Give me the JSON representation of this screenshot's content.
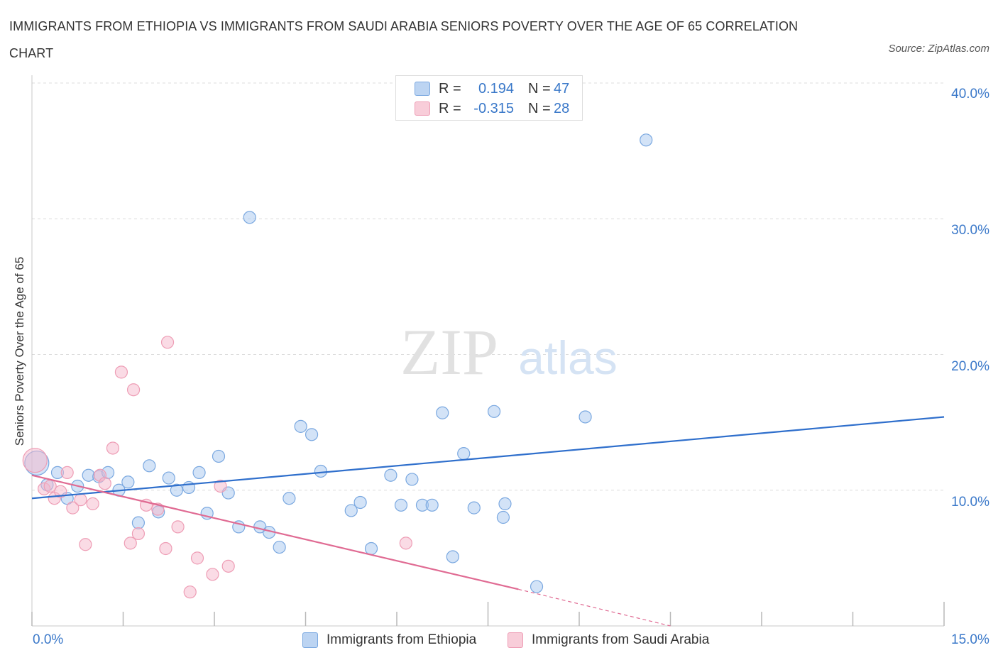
{
  "title": "IMMIGRANTS FROM ETHIOPIA VS IMMIGRANTS FROM SAUDI ARABIA SENIORS POVERTY OVER THE AGE OF 65 CORRELATION CHART",
  "source": "Source: ZipAtlas.com",
  "watermark": {
    "zip": "ZIP",
    "atlas": "atlas"
  },
  "legend": {
    "r_label": "R =",
    "n_label": "N =",
    "ethiopia": {
      "r": "0.194",
      "n": "47",
      "color": "#a7c7ef"
    },
    "saudi": {
      "r": "-0.315",
      "n": "28",
      "color": "#f5b8cb"
    }
  },
  "chart_data": {
    "type": "scatter",
    "title": "IMMIGRANTS FROM ETHIOPIA VS IMMIGRANTS FROM SAUDI ARABIA SENIORS POVERTY OVER THE AGE OF 65 CORRELATION CHART",
    "xlabel": "",
    "ylabel": "Seniors Poverty Over the Age of 65",
    "xlim": [
      0,
      15
    ],
    "ylim": [
      0,
      40
    ],
    "x_tick_labels": [
      "0.0%",
      "15.0%"
    ],
    "y_ticks": [
      10,
      20,
      30,
      40
    ],
    "y_tick_labels": [
      "10.0%",
      "20.0%",
      "30.0%",
      "40.0%"
    ],
    "grid": true,
    "legend_placement": "bottom-center",
    "series": [
      {
        "name": "Immigrants from Ethiopia",
        "color": "#a7c7ef",
        "stroke": "#7aa8e0",
        "trend_color": "#2f6fcc",
        "trend": {
          "x": [
            0,
            15
          ],
          "y": [
            9.4,
            15.4
          ]
        },
        "points": [
          {
            "x": 0.08,
            "y": 12.0,
            "big": true
          },
          {
            "x": 0.25,
            "y": 10.4
          },
          {
            "x": 0.42,
            "y": 11.3
          },
          {
            "x": 0.58,
            "y": 9.4
          },
          {
            "x": 0.75,
            "y": 10.3
          },
          {
            "x": 0.93,
            "y": 11.1
          },
          {
            "x": 1.1,
            "y": 11.0
          },
          {
            "x": 1.25,
            "y": 11.3
          },
          {
            "x": 1.43,
            "y": 10.0
          },
          {
            "x": 1.58,
            "y": 10.6
          },
          {
            "x": 1.75,
            "y": 7.6
          },
          {
            "x": 1.93,
            "y": 11.8
          },
          {
            "x": 2.08,
            "y": 8.4
          },
          {
            "x": 2.25,
            "y": 10.9
          },
          {
            "x": 2.38,
            "y": 10.0
          },
          {
            "x": 2.58,
            "y": 10.2
          },
          {
            "x": 2.75,
            "y": 11.3
          },
          {
            "x": 2.88,
            "y": 8.3
          },
          {
            "x": 3.07,
            "y": 12.5
          },
          {
            "x": 3.23,
            "y": 9.8
          },
          {
            "x": 3.4,
            "y": 7.3
          },
          {
            "x": 3.58,
            "y": 30.1
          },
          {
            "x": 3.75,
            "y": 7.3
          },
          {
            "x": 3.9,
            "y": 6.9
          },
          {
            "x": 4.07,
            "y": 5.8
          },
          {
            "x": 4.23,
            "y": 9.4
          },
          {
            "x": 4.42,
            "y": 14.7
          },
          {
            "x": 4.6,
            "y": 14.1
          },
          {
            "x": 4.75,
            "y": 11.4
          },
          {
            "x": 5.25,
            "y": 8.5
          },
          {
            "x": 5.4,
            "y": 9.1
          },
          {
            "x": 5.58,
            "y": 5.7
          },
          {
            "x": 5.9,
            "y": 11.1
          },
          {
            "x": 6.07,
            "y": 8.9
          },
          {
            "x": 6.25,
            "y": 10.8
          },
          {
            "x": 6.42,
            "y": 8.9
          },
          {
            "x": 6.58,
            "y": 8.9
          },
          {
            "x": 6.75,
            "y": 15.7
          },
          {
            "x": 6.92,
            "y": 5.1
          },
          {
            "x": 7.1,
            "y": 12.7
          },
          {
            "x": 7.27,
            "y": 8.7
          },
          {
            "x": 7.6,
            "y": 15.8
          },
          {
            "x": 7.75,
            "y": 8.0
          },
          {
            "x": 7.78,
            "y": 9.0
          },
          {
            "x": 8.3,
            "y": 2.9
          },
          {
            "x": 9.1,
            "y": 15.4
          },
          {
            "x": 10.1,
            "y": 35.8
          }
        ]
      },
      {
        "name": "Immigrants from Saudi Arabia",
        "color": "#f5b8cb",
        "stroke": "#ee9db5",
        "trend_color": "#e06b93",
        "trend": {
          "x": [
            0,
            8.0
          ],
          "y": [
            11.1,
            2.7
          ]
        },
        "trend_dashed": {
          "x": [
            8.0,
            10.5
          ],
          "y": [
            2.7,
            0.0
          ]
        },
        "points": [
          {
            "x": 0.05,
            "y": 12.2,
            "big": true
          },
          {
            "x": 0.2,
            "y": 10.1
          },
          {
            "x": 0.3,
            "y": 10.3
          },
          {
            "x": 0.37,
            "y": 9.4
          },
          {
            "x": 0.47,
            "y": 9.9
          },
          {
            "x": 0.58,
            "y": 11.3
          },
          {
            "x": 0.67,
            "y": 8.7
          },
          {
            "x": 0.8,
            "y": 9.3
          },
          {
            "x": 0.88,
            "y": 6.0
          },
          {
            "x": 1.0,
            "y": 9.0
          },
          {
            "x": 1.12,
            "y": 11.1
          },
          {
            "x": 1.2,
            "y": 10.5
          },
          {
            "x": 1.33,
            "y": 13.1
          },
          {
            "x": 1.47,
            "y": 18.7
          },
          {
            "x": 1.62,
            "y": 6.1
          },
          {
            "x": 1.67,
            "y": 17.4
          },
          {
            "x": 1.75,
            "y": 6.8
          },
          {
            "x": 1.88,
            "y": 8.9
          },
          {
            "x": 2.07,
            "y": 8.6
          },
          {
            "x": 2.2,
            "y": 5.7
          },
          {
            "x": 2.23,
            "y": 20.9
          },
          {
            "x": 2.4,
            "y": 7.3
          },
          {
            "x": 2.6,
            "y": 2.5
          },
          {
            "x": 2.72,
            "y": 5.0
          },
          {
            "x": 2.97,
            "y": 3.8
          },
          {
            "x": 3.1,
            "y": 10.3
          },
          {
            "x": 3.23,
            "y": 4.4
          },
          {
            "x": 6.15,
            "y": 6.1
          }
        ]
      }
    ]
  }
}
